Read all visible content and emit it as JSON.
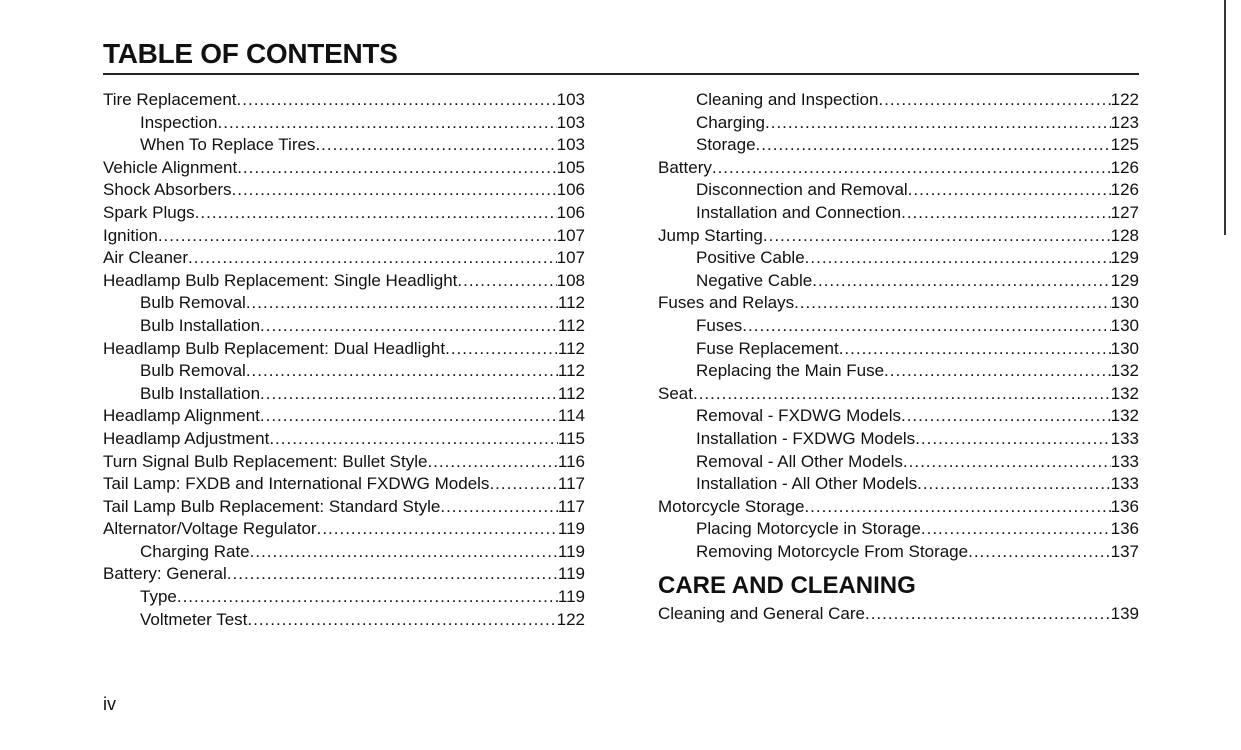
{
  "title": "TABLE OF CONTENTS",
  "left_entries": [
    {
      "label": "Tire Replacement",
      "page": "103",
      "indent": false
    },
    {
      "label": "Inspection",
      "page": "103",
      "indent": true
    },
    {
      "label": "When To Replace Tires",
      "page": "103",
      "indent": true
    },
    {
      "label": "Vehicle Alignment",
      "page": "105",
      "indent": false
    },
    {
      "label": "Shock Absorbers",
      "page": "106",
      "indent": false
    },
    {
      "label": "Spark Plugs",
      "page": "106",
      "indent": false
    },
    {
      "label": "Ignition",
      "page": "107",
      "indent": false
    },
    {
      "label": "Air Cleaner",
      "page": "107",
      "indent": false
    },
    {
      "label": "Headlamp Bulb Replacement: Single Headlight",
      "page": "108",
      "indent": false
    },
    {
      "label": "Bulb Removal",
      "page": "112",
      "indent": true
    },
    {
      "label": "Bulb Installation",
      "page": "112",
      "indent": true
    },
    {
      "label": "Headlamp Bulb Replacement: Dual Headlight",
      "page": "112",
      "indent": false
    },
    {
      "label": "Bulb Removal",
      "page": "112",
      "indent": true
    },
    {
      "label": "Bulb Installation",
      "page": "112",
      "indent": true
    },
    {
      "label": "Headlamp Alignment",
      "page": "114",
      "indent": false
    },
    {
      "label": "Headlamp Adjustment",
      "page": "115",
      "indent": false
    },
    {
      "label": "Turn Signal Bulb Replacement: Bullet Style",
      "page": "116",
      "indent": false
    },
    {
      "label": "Tail Lamp: FXDB and International FXDWG Models",
      "page": "117",
      "indent": false
    },
    {
      "label": "Tail Lamp Bulb Replacement: Standard Style",
      "page": "117",
      "indent": false
    },
    {
      "label": "Alternator/Voltage Regulator",
      "page": "119",
      "indent": false
    },
    {
      "label": "Charging Rate",
      "page": "119",
      "indent": true
    },
    {
      "label": "Battery: General",
      "page": "119",
      "indent": false
    },
    {
      "label": "Type",
      "page": "119",
      "indent": true
    },
    {
      "label": "Voltmeter Test",
      "page": "122",
      "indent": true
    }
  ],
  "right_entries": [
    {
      "label": "Cleaning and Inspection",
      "page": "122",
      "indent": true
    },
    {
      "label": "Charging",
      "page": "123",
      "indent": true
    },
    {
      "label": "Storage",
      "page": "125",
      "indent": true
    },
    {
      "label": "Battery",
      "page": "126",
      "indent": false
    },
    {
      "label": "Disconnection and Removal",
      "page": "126",
      "indent": true
    },
    {
      "label": "Installation and Connection",
      "page": "127",
      "indent": true
    },
    {
      "label": "Jump Starting",
      "page": "128",
      "indent": false
    },
    {
      "label": "Positive Cable",
      "page": "129",
      "indent": true
    },
    {
      "label": "Negative Cable",
      "page": "129",
      "indent": true
    },
    {
      "label": "Fuses and Relays",
      "page": "130",
      "indent": false
    },
    {
      "label": "Fuses",
      "page": "130",
      "indent": true
    },
    {
      "label": "Fuse Replacement",
      "page": "130",
      "indent": true
    },
    {
      "label": "Replacing the Main Fuse",
      "page": "132",
      "indent": true
    },
    {
      "label": "Seat",
      "page": "132",
      "indent": false
    },
    {
      "label": "Removal - FXDWG Models",
      "page": "132",
      "indent": true
    },
    {
      "label": "Installation - FXDWG Models",
      "page": "133",
      "indent": true
    },
    {
      "label": "Removal - All Other Models",
      "page": "133",
      "indent": true
    },
    {
      "label": "Installation - All Other Models",
      "page": "133",
      "indent": true
    },
    {
      "label": "Motorcycle Storage",
      "page": "136",
      "indent": false
    },
    {
      "label": "Placing Motorcycle in Storage",
      "page": "136",
      "indent": true
    },
    {
      "label": "Removing Motorcycle From Storage",
      "page": "137",
      "indent": true
    }
  ],
  "section2": {
    "heading": "CARE AND CLEANING",
    "entries": [
      {
        "label": "Cleaning and General Care",
        "page": "139",
        "indent": false
      }
    ]
  },
  "folio": "iv"
}
